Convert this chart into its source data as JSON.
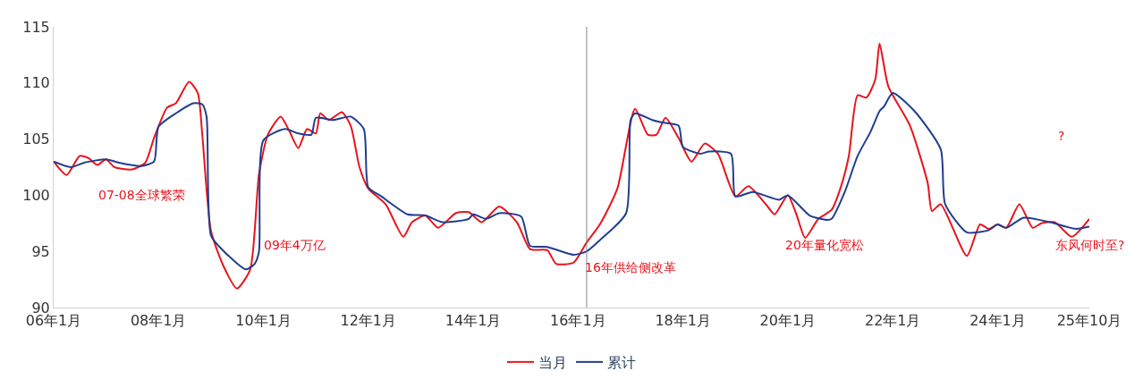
{
  "chart_data": {
    "type": "line",
    "marker": "none",
    "line_style": "solid",
    "legend": "bottom",
    "xlim": [
      "2006-01",
      "2025-10"
    ],
    "xticks": [
      {
        "value": "2006-01",
        "label": "06年1月"
      },
      {
        "value": "2008-01",
        "label": "08年1月"
      },
      {
        "value": "2010-01",
        "label": "10年1月"
      },
      {
        "value": "2012-01",
        "label": "12年1月"
      },
      {
        "value": "2014-01",
        "label": "14年1月"
      },
      {
        "value": "2016-01",
        "label": "16年1月"
      },
      {
        "value": "2018-01",
        "label": "18年1月"
      },
      {
        "value": "2020-01",
        "label": "20年1月"
      },
      {
        "value": "2022-01",
        "label": "22年1月"
      },
      {
        "value": "2024-01",
        "label": "24年1月"
      },
      {
        "value": "2025-10",
        "label": "25年10月"
      }
    ],
    "ylim": [
      90,
      115
    ],
    "yticks": [
      90,
      95,
      100,
      105,
      110,
      115
    ],
    "series": [
      {
        "name": "当月",
        "color": "#e8141c",
        "x": [
          "2006-01",
          "2006-04",
          "2006-07",
          "2006-09",
          "2006-11",
          "2007-01",
          "2007-03",
          "2007-07",
          "2007-10",
          "2007-12",
          "2008-03",
          "2008-05",
          "2008-08",
          "2008-10",
          "2008-11",
          "2009-01",
          "2009-04",
          "2009-07",
          "2009-10",
          "2009-12",
          "2010-02",
          "2010-05",
          "2010-07",
          "2010-09",
          "2010-11",
          "2011-01",
          "2011-02",
          "2011-04",
          "2011-07",
          "2011-09",
          "2011-11",
          "2012-01",
          "2012-05",
          "2012-09",
          "2012-11",
          "2013-02",
          "2013-05",
          "2013-09",
          "2013-12",
          "2014-03",
          "2014-07",
          "2014-11",
          "2015-02",
          "2015-06",
          "2015-08",
          "2015-12",
          "2016-03",
          "2016-06",
          "2016-10",
          "2017-02",
          "2017-05",
          "2017-07",
          "2017-09",
          "2017-12",
          "2018-03",
          "2018-06",
          "2018-09",
          "2019-01",
          "2019-04",
          "2019-08",
          "2019-10",
          "2020-01",
          "2020-03",
          "2020-05",
          "2020-08",
          "2020-11",
          "2021-01",
          "2021-03",
          "2021-05",
          "2021-07",
          "2021-09",
          "2021-10",
          "2021-12",
          "2022-05",
          "2022-09",
          "2022-10",
          "2022-12",
          "2023-06",
          "2023-09",
          "2023-11",
          "2024-01",
          "2024-03",
          "2024-06",
          "2024-09",
          "2024-11",
          "2025-02",
          "2025-06",
          "2025-10"
        ],
        "values": [
          103.0,
          101.8,
          103.5,
          103.3,
          102.7,
          103.2,
          102.5,
          102.3,
          102.9,
          105.1,
          107.8,
          108.2,
          110.1,
          109.1,
          105.4,
          96.8,
          93.6,
          91.7,
          93.4,
          101.9,
          105.4,
          107.0,
          105.7,
          104.2,
          105.9,
          105.5,
          107.3,
          106.7,
          107.4,
          106.2,
          102.5,
          100.6,
          99.2,
          96.3,
          97.6,
          98.2,
          97.1,
          98.4,
          98.5,
          97.6,
          99.0,
          97.6,
          95.2,
          95.1,
          93.9,
          94.0,
          95.8,
          97.4,
          100.6,
          107.7,
          105.4,
          105.4,
          106.9,
          105.1,
          103.0,
          104.6,
          103.7,
          99.9,
          100.8,
          99.2,
          98.3,
          100.0,
          98.3,
          96.2,
          97.9,
          98.7,
          100.6,
          103.5,
          108.9,
          108.7,
          110.3,
          113.5,
          109.7,
          106.2,
          101.1,
          98.6,
          99.2,
          94.6,
          97.4,
          97.0,
          97.4,
          97.1,
          99.2,
          97.1,
          97.5,
          97.6,
          96.3,
          97.9
        ]
      },
      {
        "name": "累计",
        "color": "#203d8f",
        "x": [
          "2006-01",
          "2006-05",
          "2006-08",
          "2007-01",
          "2007-04",
          "2007-09",
          "2007-12",
          "2008-01",
          "2008-05",
          "2008-09",
          "2008-11",
          "2008-12",
          "2009-01",
          "2009-04",
          "2009-09",
          "2009-11",
          "2009-12",
          "2010-01",
          "2010-06",
          "2010-09",
          "2010-12",
          "2011-01",
          "2011-05",
          "2011-09",
          "2011-12",
          "2012-01",
          "2012-04",
          "2012-10",
          "2013-02",
          "2013-06",
          "2013-12",
          "2014-01",
          "2014-04",
          "2014-07",
          "2014-12",
          "2015-02",
          "2015-06",
          "2015-12",
          "2016-03",
          "2016-06",
          "2016-12",
          "2017-01",
          "2017-02",
          "2017-06",
          "2017-08",
          "2017-12",
          "2018-01",
          "2018-05",
          "2018-07",
          "2018-12",
          "2019-01",
          "2019-05",
          "2019-11",
          "2020-01",
          "2020-06",
          "2020-10",
          "2020-11",
          "2021-02",
          "2021-05",
          "2021-08",
          "2021-10",
          "2021-11",
          "2022-01",
          "2022-06",
          "2022-12",
          "2023-01",
          "2023-06",
          "2023-11",
          "2024-01",
          "2024-03",
          "2024-07",
          "2025-01",
          "2025-07",
          "2025-10"
        ],
        "values": [
          103.0,
          102.5,
          102.9,
          103.2,
          102.9,
          102.6,
          103.0,
          106.1,
          107.3,
          108.2,
          108.1,
          107.0,
          96.4,
          95.0,
          93.4,
          93.9,
          95.0,
          104.9,
          105.9,
          105.5,
          105.4,
          106.9,
          106.7,
          107.0,
          105.9,
          100.7,
          99.9,
          98.3,
          98.2,
          97.6,
          97.9,
          98.3,
          97.9,
          98.4,
          98.1,
          95.5,
          95.4,
          94.7,
          95.0,
          96.0,
          98.4,
          106.7,
          107.3,
          106.7,
          106.5,
          106.2,
          104.3,
          103.7,
          103.9,
          103.7,
          99.9,
          100.3,
          99.6,
          100.0,
          98.2,
          97.8,
          97.9,
          100.3,
          103.5,
          105.7,
          107.5,
          107.9,
          109.1,
          107.5,
          104.1,
          99.2,
          96.7,
          96.9,
          97.4,
          97.1,
          98.0,
          97.6,
          97.0,
          97.2
        ]
      }
    ],
    "ref_lines": [
      {
        "axis": "x",
        "value": "2016-03",
        "color": "#888888"
      }
    ],
    "annotations": [
      "07-08全球繁荣",
      "09年4万亿",
      "16年供给侧改革",
      "20年量化宽松",
      "东风何时至?",
      "?"
    ]
  }
}
